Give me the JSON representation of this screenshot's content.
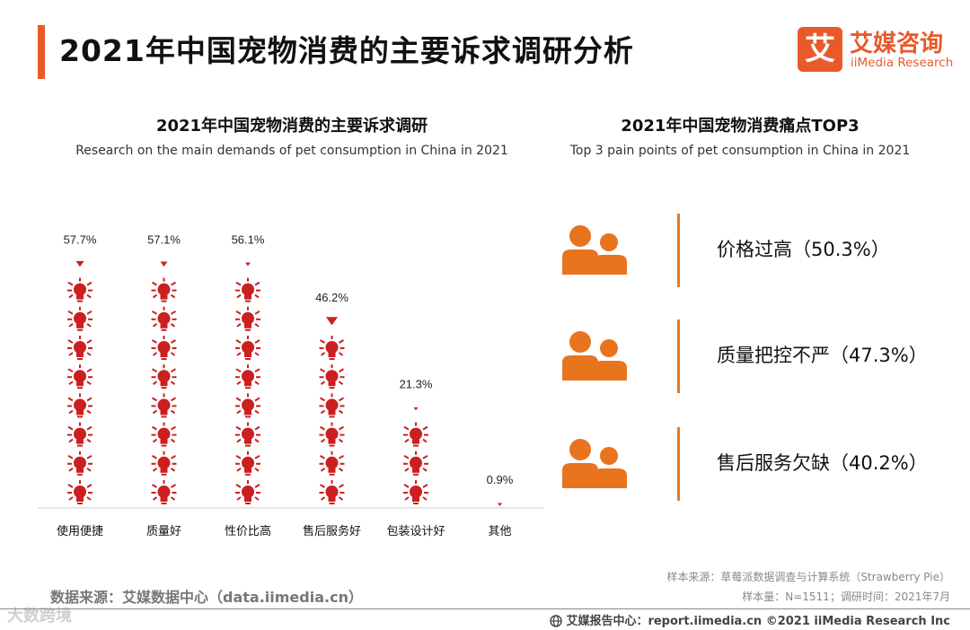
{
  "page_title": "2021年中国宠物消费的主要诉求调研分析",
  "logo": {
    "mark": "艾",
    "name_cn": "艾媒咨询",
    "name_en": "iiMedia Research"
  },
  "left_panel": {
    "title": "2021年中国宠物消费的主要诉求调研",
    "subtitle": "Research on the main demands of pet consumption in China in 2021"
  },
  "right_panel": {
    "title": "2021年中国宠物消费痛点TOP3",
    "subtitle": "Top 3 pain points of pet consumption in China in 2021",
    "items": [
      {
        "label": "价格过高（50.3%）",
        "icon": "people-icon"
      },
      {
        "label": "质量把控不严（47.3%）",
        "icon": "people-icon"
      },
      {
        "label": "售后服务欠缺（40.2%）",
        "icon": "people-icon"
      }
    ]
  },
  "chart_data": {
    "type": "bar",
    "style": "pictogram-lightbulb",
    "title": "2021年中国宠物消费的主要诉求调研",
    "subtitle": "Research on the main demands of pet consumption in China in 2021",
    "categories": [
      "使用便捷",
      "质量好",
      "性价比高",
      "售后服务好",
      "包装设计好",
      "其他"
    ],
    "values": [
      57.7,
      57.1,
      56.1,
      46.2,
      21.3,
      0.9
    ],
    "value_labels": [
      "57.7%",
      "57.1%",
      "56.1%",
      "46.2%",
      "21.3%",
      "0.9%"
    ],
    "unit": "%",
    "ylim": [
      0,
      60
    ],
    "color": "#cc1f1f"
  },
  "footer": {
    "source_left": "数据来源：艾媒数据中心（data.iimedia.cn）",
    "sample_source": "样本来源：草莓派数据调查与计算系统（Strawberry Pie）",
    "sample_size": "样本量：N=1511；调研时间：2021年7月",
    "watermark": "大数跨境",
    "copyright": "艾媒报告中心：report.iimedia.cn ©2021  iiMedia Research  Inc"
  },
  "colors": {
    "accent": "#e85a2a",
    "icon_orange": "#e8741e",
    "bulb_red": "#cc1f1f"
  }
}
